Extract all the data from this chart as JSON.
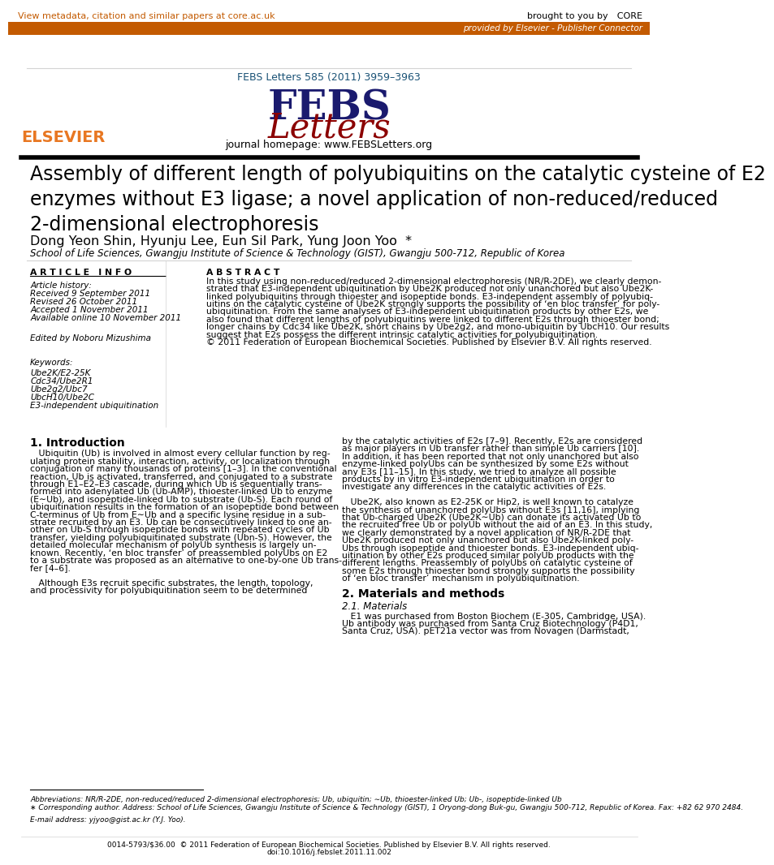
{
  "top_bar_color": "#C35A00",
  "top_bar_text": "provided by Elsevier - Publisher Connector",
  "top_link_text": "View metadata, citation and similar papers at core.ac.uk",
  "core_text": "brought to you by CORE",
  "journal_ref": "FEBS Letters 585 (2011) 3959–3963",
  "journal_homepage": "journal homepage: www.FEBSLetters.org",
  "title": "Assembly of different length of polyubiquitins on the catalytic cysteine of E2\nenzymes without E3 ligase; a novel application of non-reduced/reduced\n2-dimensional electrophoresis",
  "authors": "Dong Yeon Shin, Hyunju Lee, Eun Sil Park, Yung Joon Yoo",
  "authors_star": "*",
  "affiliation": "School of Life Sciences, Gwangju Institute of Science & Technology (GIST), Gwangju 500-712, Republic of Korea",
  "section_article_info": "A R T I C L E   I N F O",
  "section_abstract": "A B S T R A C T",
  "article_history_label": "Article history:",
  "received": "Received 9 September 2011",
  "revised": "Revised 26 October 2011",
  "accepted": "Accepted 1 November 2011",
  "available": "Available online 10 November 2011",
  "edited_by": "Edited by Noboru Mizushima",
  "keywords_label": "Keywords:",
  "keywords": [
    "Ube2K/E2-25K",
    "Cdc34/Ube2R1",
    "Ube2g2/Ubc7",
    "UbcH10/Ube2C",
    "E3-independent ubiquitination"
  ],
  "abstract_lines": [
    "In this study using non-reduced/reduced 2-dimensional electrophoresis (NR/R-2DE), we clearly demon-",
    "strated that E3-independent ubiquitination by Ube2K produced not only unanchored but also Ube2K-",
    "linked polyubiquitins through thioester and isopeptide bonds. E3-independent assembly of polyubiq-",
    "uitins on the catalytic cysteine of Ube2K strongly supports the possibility of ‘en bloc transfer’ for poly-",
    "ubiquitination. From the same analyses of E3-independent ubiquitination products by other E2s, we",
    "also found that different lengths of polyubiquitins were linked to different E2s through thioester bond;",
    "longer chains by Cdc34 like Ube2K, short chains by Ube2g2, and mono-ubiquitin by UbcH10. Our results",
    "suggest that E2s possess the different intrinsic catalytic activities for polyubiquitination.",
    "© 2011 Federation of European Biochemical Societies. Published by Elsevier B.V. All rights reserved."
  ],
  "intro_heading": "1. Introduction",
  "intro_left_lines": [
    "   Ubiquitin (Ub) is involved in almost every cellular function by reg-",
    "ulating protein stability, interaction, activity, or localization through",
    "conjugation of many thousands of proteins [1–3]. In the conventional",
    "reaction, Ub is activated, transferred, and conjugated to a substrate",
    "through E1–E2–E3 cascade, during which Ub is sequentially trans-",
    "formed into adenylated Ub (Ub-AMP), thioester-linked Ub to enzyme",
    "(E∼Ub), and isopeptide-linked Ub to substrate (Ub-S). Each round of",
    "ubiquitination results in the formation of an isopeptide bond between",
    "C-terminus of Ub from E∼Ub and a specific lysine residue in a sub-",
    "strate recruited by an E3. Ub can be consecutively linked to one an-",
    "other on Ub-S through isopeptide bonds with repeated cycles of Ub",
    "transfer, yielding polyubiquitinated substrate (Ubn-S). However, the",
    "detailed molecular mechanism of polyUb synthesis is largely un-",
    "known. Recently, ‘en bloc transfer’ of preassembled polyUbs on E2",
    "to a substrate was proposed as an alternative to one-by-one Ub trans-",
    "fer [4–6].",
    "",
    "   Although E3s recruit specific substrates, the length, topology,",
    "and processivity for polyubiquitination seem to be determined"
  ],
  "intro_right_lines": [
    "by the catalytic activities of E2s [7–9]. Recently, E2s are considered",
    "as major players in Ub transfer rather than simple Ub carriers [10].",
    "In addition, it has been reported that not only unanchored but also",
    "enzyme-linked polyUbs can be synthesized by some E2s without",
    "any E3s [11–15]. In this study, we tried to analyze all possible",
    "products by in vitro E3-independent ubiquitination in order to",
    "investigate any differences in the catalytic activities of E2s.",
    "",
    "   Ube2K, also known as E2-25K or Hip2, is well known to catalyze",
    "the synthesis of unanchored polyUbs without E3s [11,16], implying",
    "that Ub-charged Ube2K (Ube2K∼Ub) can donate its activated Ub to",
    "the recruited free Ub or polyUb without the aid of an E3. In this study,",
    "we clearly demonstrated by a novel application of NR/R-2DE that",
    "Ube2K produced not only unanchored but also Ube2K-linked poly-",
    "Ubs through isopeptide and thioester bonds. E3-independent ubiq-",
    "uitination by other E2s produced similar polyUb products with the",
    "different lengths. Preassembly of polyUbs on catalytic cysteine of",
    "some E2s through thioester bond strongly supports the possibility",
    "of ‘en bloc transfer’ mechanism in polyubiquitination."
  ],
  "materials_heading": "2. Materials and methods",
  "materials_sub": "2.1. Materials",
  "materials_lines": [
    "   E1 was purchased from Boston Biochem (E-305, Cambridge, USA).",
    "Ub antibody was purchased from Santa Cruz Biotechnology (P4D1,",
    "Santa Cruz, USA). pET21a vector was from Novagen (Darmstadt,"
  ],
  "footnote_abbrev": "Abbreviations: NR/R-2DE, non-reduced/reduced 2-dimensional electrophoresis; Ub, ubiquitin; ∼Ub, thioester-linked Ub; Ub-, isopeptide-linked Ub",
  "footnote_star": "∗ Corresponding author. Address: School of Life Sciences, Gwangju Institute of Science & Technology (GIST), 1 Oryong-dong Buk-gu, Gwangju 500-712, Republic of Korea. Fax: +82 62 970 2484.",
  "footnote_email": "E-mail address: yjyoo@gist.ac.kr (Y.J. Yoo).",
  "bottom_line1": "0014-5793/$36.00  © 2011 Federation of European Biochemical Societies. Published by Elsevier B.V. All rights reserved.",
  "bottom_line2": "doi:10.1016/j.febslet.2011.11.002",
  "elsevier_text": "ELSEVIER",
  "orange_color": "#E87722",
  "dark_navy": "#1a1a6e",
  "dark_red": "#8B0000",
  "link_color": "#C35A00",
  "blue_link": "#1a5276"
}
